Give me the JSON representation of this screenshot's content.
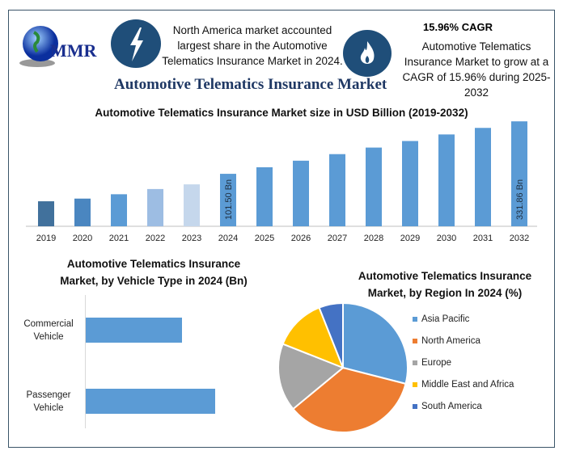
{
  "logo": {
    "text": "MMR"
  },
  "header": {
    "highlight_1": "North America market accounted largest share in the Automotive Telematics Insurance Market in 2024.",
    "cagr_title": "15.96% CAGR",
    "cagr_text": "Automotive Telematics Insurance Market to grow at a CAGR of 15.96% during 2025-2032",
    "main_title": "Automotive Telematics Insurance Market"
  },
  "colors": {
    "dark": "#1f4e79",
    "bar": "#5b9bd5",
    "orange": "#ed7d31",
    "gray": "#a5a5a5",
    "yellow": "#ffc000",
    "navy": "#4472c4"
  },
  "chart_data": [
    {
      "type": "bar",
      "title": "Automotive Telematics Insurance Market size in USD Billion (2019-2032)",
      "categories": [
        "2019",
        "2020",
        "2021",
        "2022",
        "2023",
        "2024",
        "2025",
        "2026",
        "2027",
        "2028",
        "2029",
        "2030",
        "2031",
        "2032"
      ],
      "values": [
        54.6,
        58,
        64,
        72,
        80,
        101.5,
        117.7,
        136.5,
        158.3,
        183.6,
        212.9,
        246.9,
        286.3,
        331.86
      ],
      "bar_colors": [
        "#41719c",
        "#4a86c0",
        "#5b9bd5",
        "#9dbde3",
        "#c5d7ec",
        "#5b9bd5",
        "#5b9bd5",
        "#5b9bd5",
        "#5b9bd5",
        "#5b9bd5",
        "#5b9bd5",
        "#5b9bd5",
        "#5b9bd5",
        "#5b9bd5"
      ],
      "data_labels": {
        "2024": "101.50 Bn",
        "2032": "331.86 Bn"
      },
      "xlabel": "",
      "ylabel": ""
    },
    {
      "type": "bar",
      "orientation": "horizontal",
      "title": "Automotive Telematics Insurance Market, by Vehicle Type in 2024 (Bn)",
      "categories": [
        "Commercial Vehicle",
        "Passenger Vehicle"
      ],
      "values": [
        43.2,
        58.3
      ],
      "xlim": [
        0,
        80
      ]
    },
    {
      "type": "pie",
      "title": "Automotive Telematics Insurance Market, by Region In 2024 (%)",
      "labels": [
        "Asia Pacific",
        "North America",
        "Europe",
        "Middle East and Africa",
        "South America"
      ],
      "values": [
        29,
        35,
        17,
        13,
        6
      ],
      "colors": [
        "#5b9bd5",
        "#ed7d31",
        "#a5a5a5",
        "#ffc000",
        "#4472c4"
      ],
      "legend": "right"
    }
  ]
}
